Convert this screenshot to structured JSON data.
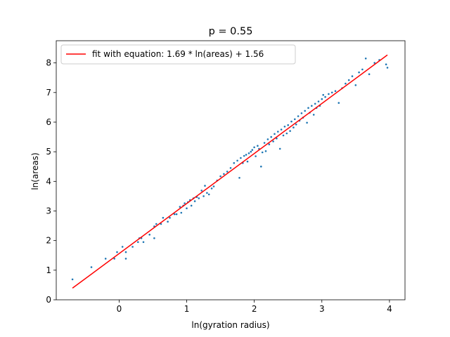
{
  "chart_data": {
    "type": "scatter",
    "title": "p = 0.55",
    "xlabel": "ln(gyration radius)",
    "ylabel": "ln(areas)",
    "xlim": [
      -0.93,
      4.23
    ],
    "ylim": [
      0,
      8.75
    ],
    "xticks": [
      0,
      1,
      2,
      3,
      4
    ],
    "yticks": [
      0,
      1,
      2,
      3,
      4,
      5,
      6,
      7,
      8
    ],
    "grid": false,
    "legend_position": "upper left",
    "colors": {
      "points": "#1f77b4",
      "fit": "#ff0000",
      "axes": "#000000"
    },
    "fit": {
      "label": "fit with equation: 1.69 * ln(areas) + 1.56",
      "slope": 1.69,
      "intercept": 1.56,
      "x_range": [
        -0.69,
        3.97
      ]
    },
    "series": [
      {
        "points": [
          [
            -0.69,
            0.69
          ],
          [
            -0.41,
            1.1
          ],
          [
            -0.2,
            1.39
          ],
          [
            -0.07,
            1.39
          ],
          [
            -0.03,
            1.61
          ],
          [
            0.05,
            1.79
          ],
          [
            0.1,
            1.39
          ],
          [
            0.1,
            1.61
          ],
          [
            0.2,
            1.79
          ],
          [
            0.28,
            1.95
          ],
          [
            0.3,
            2.08
          ],
          [
            0.33,
            2.08
          ],
          [
            0.36,
            1.95
          ],
          [
            0.45,
            2.2
          ],
          [
            0.52,
            2.08
          ],
          [
            0.52,
            2.48
          ],
          [
            0.55,
            2.56
          ],
          [
            0.62,
            2.56
          ],
          [
            0.65,
            2.77
          ],
          [
            0.72,
            2.64
          ],
          [
            0.75,
            2.77
          ],
          [
            0.82,
            2.89
          ],
          [
            0.85,
            2.89
          ],
          [
            0.9,
            3.14
          ],
          [
            0.92,
            2.94
          ],
          [
            0.95,
            3.18
          ],
          [
            0.97,
            3.26
          ],
          [
            1.0,
            3.09
          ],
          [
            1.02,
            3.3
          ],
          [
            1.05,
            3.37
          ],
          [
            1.07,
            3.18
          ],
          [
            1.1,
            3.43
          ],
          [
            1.12,
            3.33
          ],
          [
            1.15,
            3.47
          ],
          [
            1.18,
            3.43
          ],
          [
            1.22,
            3.69
          ],
          [
            1.25,
            3.5
          ],
          [
            1.27,
            3.85
          ],
          [
            1.3,
            3.61
          ],
          [
            1.33,
            3.56
          ],
          [
            1.37,
            3.76
          ],
          [
            1.4,
            3.83
          ],
          [
            1.45,
            4.03
          ],
          [
            1.5,
            4.17
          ],
          [
            1.55,
            4.25
          ],
          [
            1.6,
            4.33
          ],
          [
            1.65,
            4.45
          ],
          [
            1.7,
            4.62
          ],
          [
            1.75,
            4.7
          ],
          [
            1.78,
            4.12
          ],
          [
            1.8,
            4.79
          ],
          [
            1.83,
            4.62
          ],
          [
            1.85,
            4.86
          ],
          [
            1.88,
            4.9
          ],
          [
            1.9,
            4.67
          ],
          [
            1.92,
            4.95
          ],
          [
            1.95,
            5.0
          ],
          [
            1.97,
            5.06
          ],
          [
            2.0,
            5.15
          ],
          [
            2.02,
            4.85
          ],
          [
            2.05,
            5.2
          ],
          [
            2.07,
            5.1
          ],
          [
            2.1,
            4.5
          ],
          [
            2.12,
            4.98
          ],
          [
            2.15,
            5.3
          ],
          [
            2.17,
            5.02
          ],
          [
            2.2,
            5.42
          ],
          [
            2.22,
            5.25
          ],
          [
            2.25,
            5.5
          ],
          [
            2.28,
            5.35
          ],
          [
            2.3,
            5.6
          ],
          [
            2.33,
            5.45
          ],
          [
            2.35,
            5.68
          ],
          [
            2.38,
            5.1
          ],
          [
            2.4,
            5.75
          ],
          [
            2.43,
            5.55
          ],
          [
            2.45,
            5.85
          ],
          [
            2.48,
            5.62
          ],
          [
            2.5,
            5.9
          ],
          [
            2.53,
            5.7
          ],
          [
            2.55,
            6.02
          ],
          [
            2.58,
            5.82
          ],
          [
            2.6,
            6.1
          ],
          [
            2.62,
            5.92
          ],
          [
            2.65,
            6.2
          ],
          [
            2.67,
            6.05
          ],
          [
            2.7,
            6.3
          ],
          [
            2.72,
            6.15
          ],
          [
            2.75,
            6.38
          ],
          [
            2.78,
            5.98
          ],
          [
            2.8,
            6.48
          ],
          [
            2.82,
            6.32
          ],
          [
            2.85,
            6.55
          ],
          [
            2.88,
            6.25
          ],
          [
            2.9,
            6.62
          ],
          [
            2.92,
            6.48
          ],
          [
            2.95,
            6.7
          ],
          [
            2.97,
            6.55
          ],
          [
            3.0,
            6.78
          ],
          [
            3.02,
            6.92
          ],
          [
            3.05,
            6.85
          ],
          [
            3.1,
            6.95
          ],
          [
            3.15,
            7.0
          ],
          [
            3.2,
            7.05
          ],
          [
            3.25,
            6.65
          ],
          [
            3.3,
            7.15
          ],
          [
            3.35,
            7.3
          ],
          [
            3.4,
            7.42
          ],
          [
            3.45,
            7.55
          ],
          [
            3.5,
            7.25
          ],
          [
            3.55,
            7.68
          ],
          [
            3.6,
            7.78
          ],
          [
            3.65,
            8.15
          ],
          [
            3.7,
            7.62
          ],
          [
            3.78,
            8.0
          ],
          [
            3.85,
            8.1
          ],
          [
            3.95,
            7.95
          ],
          [
            3.97,
            7.84
          ]
        ]
      }
    ]
  }
}
